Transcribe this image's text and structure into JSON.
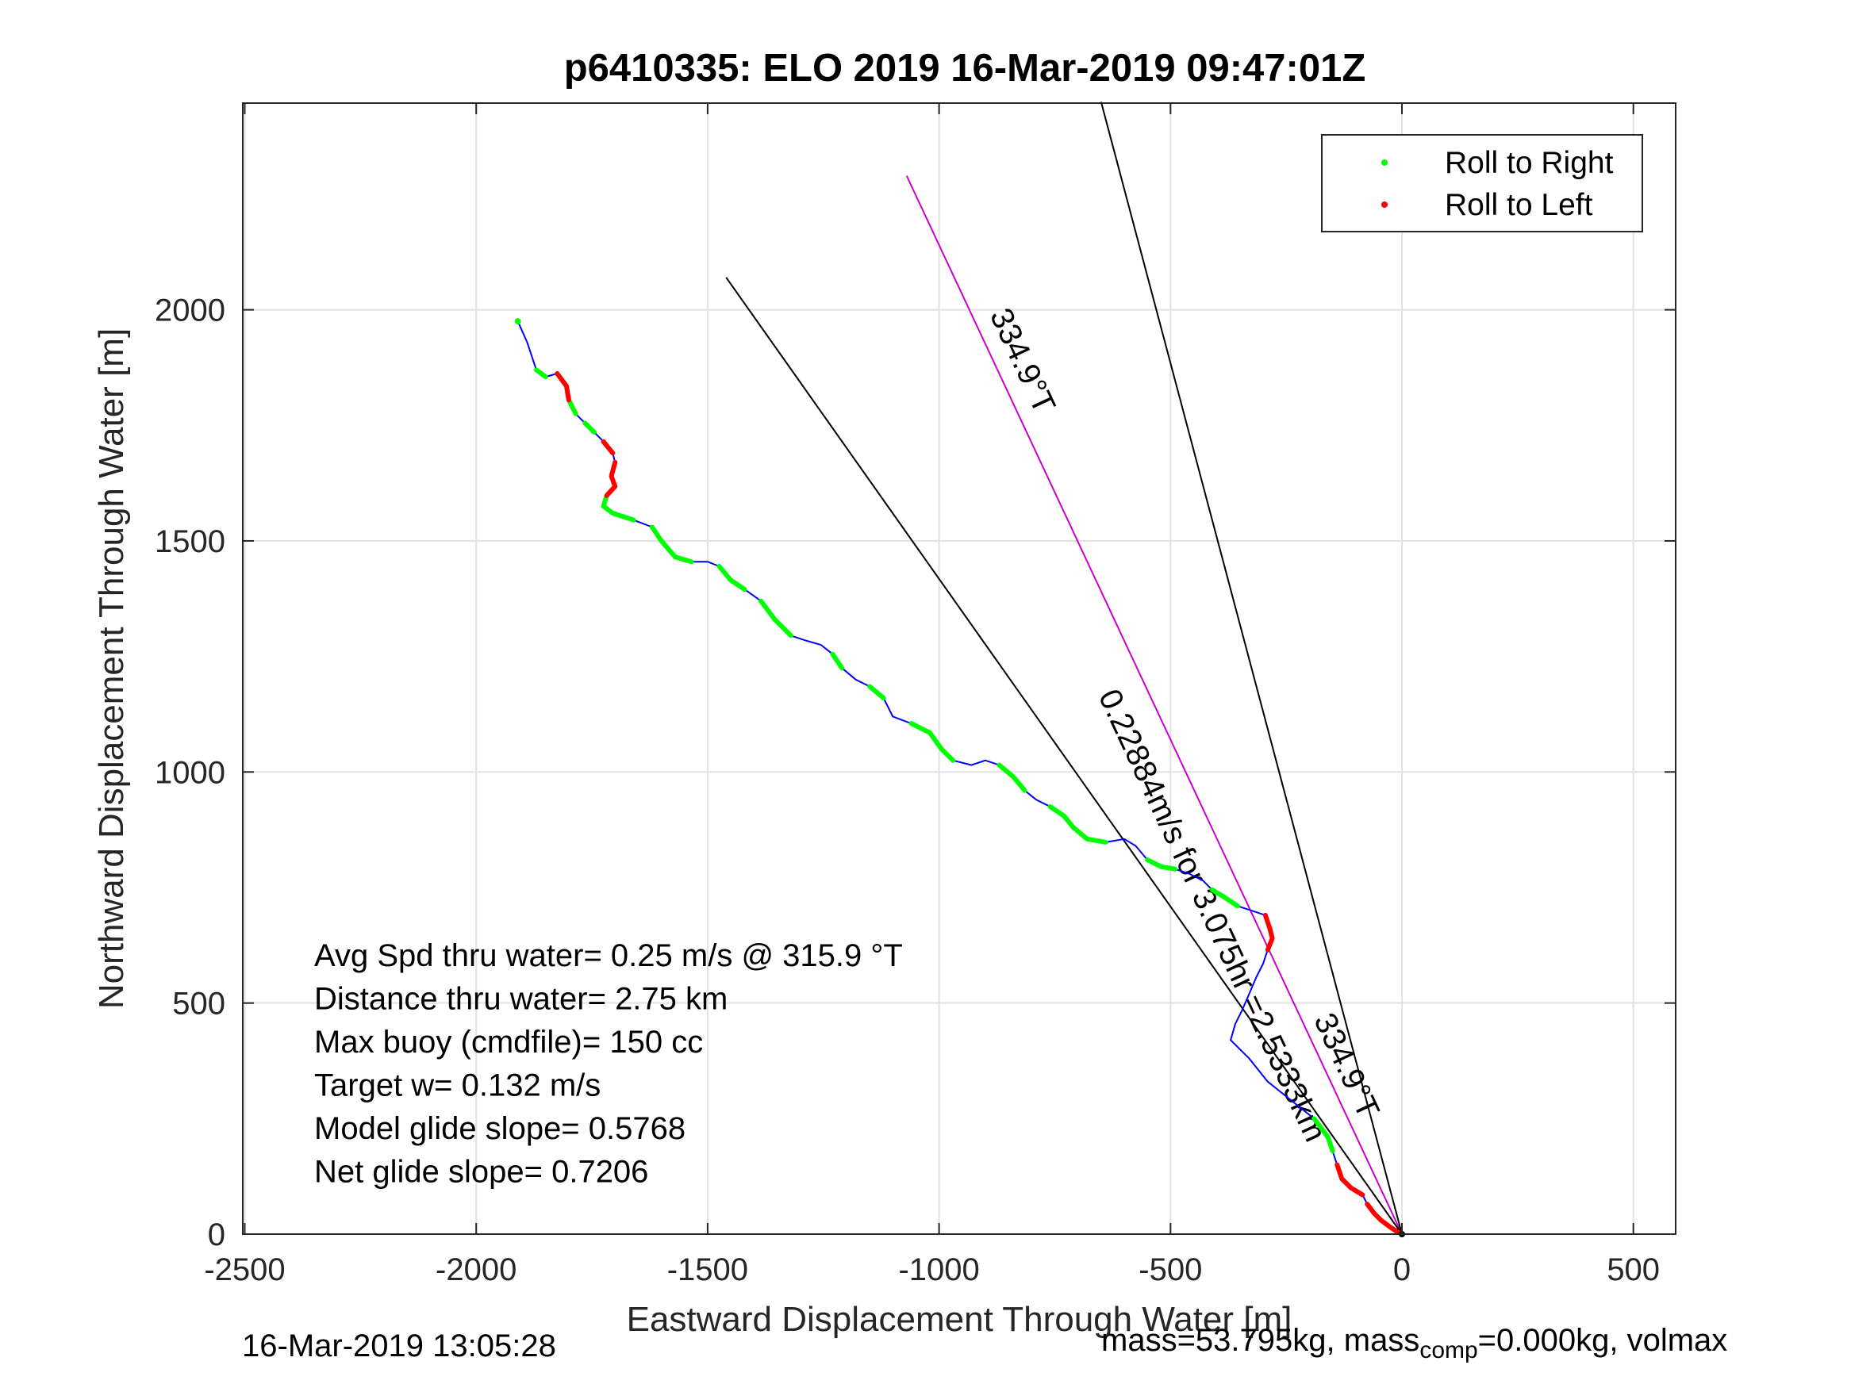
{
  "chart_data": {
    "type": "line",
    "title": "p6410335: ELO 2019 16-Mar-2019 09:47:01Z",
    "xlabel": "Eastward Displacement Through Water [m]",
    "ylabel": "Northward Displacement Through Water [m]",
    "xlim": [
      -2500,
      600
    ],
    "ylim": [
      0,
      2450
    ],
    "xticks": [
      -2500,
      -2000,
      -1500,
      -1000,
      -500,
      0,
      500
    ],
    "yticks": [
      0,
      500,
      1000,
      1500,
      2000
    ],
    "grid": true,
    "legend_position": "top-right",
    "legend": [
      {
        "label": "Roll to Right",
        "color": "#00ff00"
      },
      {
        "label": "Roll to Left",
        "color": "#ff0000"
      }
    ],
    "track_color": "#0000ff",
    "track": [
      [
        -1910,
        1975
      ],
      [
        -1890,
        1930
      ],
      [
        -1870,
        1870
      ],
      [
        -1850,
        1855
      ],
      [
        -1825,
        1862
      ],
      [
        -1805,
        1835
      ],
      [
        -1800,
        1805
      ],
      [
        -1785,
        1775
      ],
      [
        -1765,
        1755
      ],
      [
        -1745,
        1735
      ],
      [
        -1725,
        1715
      ],
      [
        -1705,
        1690
      ],
      [
        -1700,
        1670
      ],
      [
        -1708,
        1640
      ],
      [
        -1700,
        1618
      ],
      [
        -1718,
        1598
      ],
      [
        -1725,
        1575
      ],
      [
        -1705,
        1560
      ],
      [
        -1660,
        1545
      ],
      [
        -1620,
        1530
      ],
      [
        -1600,
        1500
      ],
      [
        -1570,
        1465
      ],
      [
        -1535,
        1455
      ],
      [
        -1500,
        1455
      ],
      [
        -1475,
        1445
      ],
      [
        -1450,
        1415
      ],
      [
        -1420,
        1395
      ],
      [
        -1385,
        1370
      ],
      [
        -1355,
        1330
      ],
      [
        -1320,
        1295
      ],
      [
        -1290,
        1285
      ],
      [
        -1255,
        1275
      ],
      [
        -1230,
        1255
      ],
      [
        -1210,
        1225
      ],
      [
        -1180,
        1200
      ],
      [
        -1150,
        1185
      ],
      [
        -1120,
        1160
      ],
      [
        -1100,
        1120
      ],
      [
        -1060,
        1105
      ],
      [
        -1020,
        1085
      ],
      [
        -995,
        1050
      ],
      [
        -970,
        1025
      ],
      [
        -930,
        1015
      ],
      [
        -900,
        1025
      ],
      [
        -870,
        1015
      ],
      [
        -840,
        990
      ],
      [
        -815,
        960
      ],
      [
        -790,
        940
      ],
      [
        -760,
        925
      ],
      [
        -730,
        905
      ],
      [
        -710,
        880
      ],
      [
        -680,
        855
      ],
      [
        -640,
        848
      ],
      [
        -600,
        855
      ],
      [
        -575,
        840
      ],
      [
        -550,
        810
      ],
      [
        -520,
        795
      ],
      [
        -490,
        790
      ],
      [
        -460,
        780
      ],
      [
        -430,
        765
      ],
      [
        -410,
        745
      ],
      [
        -385,
        730
      ],
      [
        -355,
        710
      ],
      [
        -325,
        700
      ],
      [
        -295,
        690
      ],
      [
        -285,
        660
      ],
      [
        -280,
        640
      ],
      [
        -290,
        615
      ],
      [
        -300,
        585
      ],
      [
        -315,
        555
      ],
      [
        -330,
        520
      ],
      [
        -345,
        485
      ],
      [
        -360,
        455
      ],
      [
        -370,
        420
      ],
      [
        -330,
        380
      ],
      [
        -290,
        330
      ],
      [
        -240,
        290
      ],
      [
        -190,
        250
      ],
      [
        -160,
        210
      ],
      [
        -150,
        180
      ],
      [
        -140,
        150
      ],
      [
        -130,
        120
      ],
      [
        -110,
        100
      ],
      [
        -85,
        85
      ],
      [
        -75,
        65
      ],
      [
        -60,
        45
      ],
      [
        -45,
        30
      ],
      [
        -25,
        15
      ],
      [
        -10,
        5
      ],
      [
        0,
        0
      ]
    ],
    "roll_right_segments": [
      [
        0,
        0
      ],
      [
        2,
        3
      ],
      [
        6,
        7
      ],
      [
        8,
        9
      ],
      [
        15,
        18
      ],
      [
        19,
        22
      ],
      [
        24,
        26
      ],
      [
        27,
        29
      ],
      [
        32,
        33
      ],
      [
        35,
        36
      ],
      [
        38,
        41
      ],
      [
        44,
        46
      ],
      [
        48,
        52
      ],
      [
        55,
        57
      ],
      [
        60,
        62
      ],
      [
        77,
        79
      ]
    ],
    "roll_left_segments": [
      [
        4,
        6
      ],
      [
        10,
        11
      ],
      [
        12,
        15
      ],
      [
        64,
        67
      ],
      [
        80,
        83
      ],
      [
        84,
        90
      ]
    ],
    "reference_lines": [
      {
        "from": [
          0,
          0
        ],
        "to": [
          -1070,
          2290
        ],
        "color": "#cc00cc"
      },
      {
        "from": [
          0,
          0
        ],
        "to": [
          -650,
          2450
        ],
        "color": "#000000"
      },
      {
        "from": [
          0,
          0
        ],
        "to": [
          -1460,
          2070
        ],
        "color": "#000000"
      }
    ],
    "line_labels": [
      {
        "text": "334.9°T",
        "at": [
          -840,
          1880
        ]
      },
      {
        "text": "0.22884m/s for 3.075hr =2.5333km",
        "at": [
          -430,
          680
        ]
      },
      {
        "text": "334.9°T",
        "at": [
          -140,
          355
        ]
      }
    ],
    "annotations": [
      "Avg Spd thru water=  0.25 m/s @ 315.9 °T",
      "Distance thru water=  2.75 km",
      "Max buoy (cmdfile)= 150 cc",
      "Target w= 0.132 m/s",
      "Model glide slope= 0.5768",
      "Net glide slope= 0.7206"
    ]
  },
  "footer": {
    "timestamp": "16-Mar-2019 13:05:28",
    "mass_text": "mass=53.795kg, mass",
    "mass_sub": "comp",
    "mass_rest": "=0.000kg, volmax"
  }
}
